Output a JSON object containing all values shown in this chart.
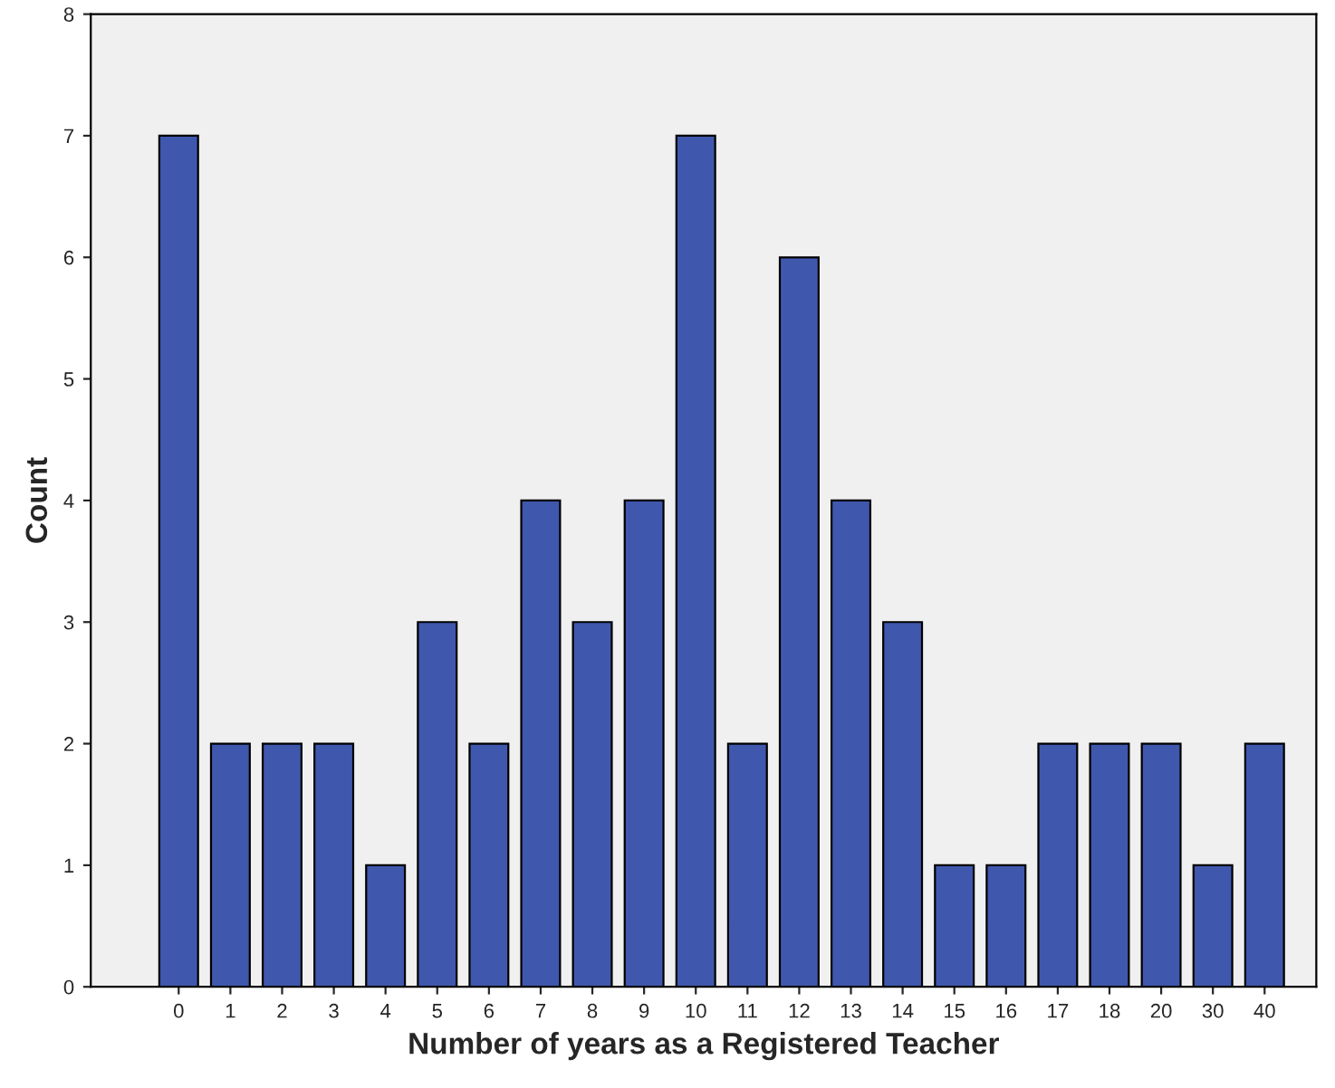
{
  "chart_data": {
    "type": "bar",
    "xlabel": "Number of years as a Registered Teacher",
    "ylabel": "Count",
    "categories": [
      "0",
      "1",
      "2",
      "3",
      "4",
      "5",
      "6",
      "7",
      "8",
      "9",
      "10",
      "11",
      "12",
      "13",
      "14",
      "15",
      "16",
      "17",
      "18",
      "20",
      "30",
      "40"
    ],
    "values": [
      7,
      2,
      2,
      2,
      1,
      3,
      2,
      4,
      3,
      4,
      7,
      2,
      6,
      4,
      3,
      1,
      1,
      2,
      2,
      2,
      1,
      2
    ],
    "color": "#3f58ad",
    "ylim": [
      0,
      8
    ],
    "yticks": [
      0,
      1,
      2,
      3,
      4,
      5,
      6,
      7,
      8
    ],
    "grid": false
  }
}
